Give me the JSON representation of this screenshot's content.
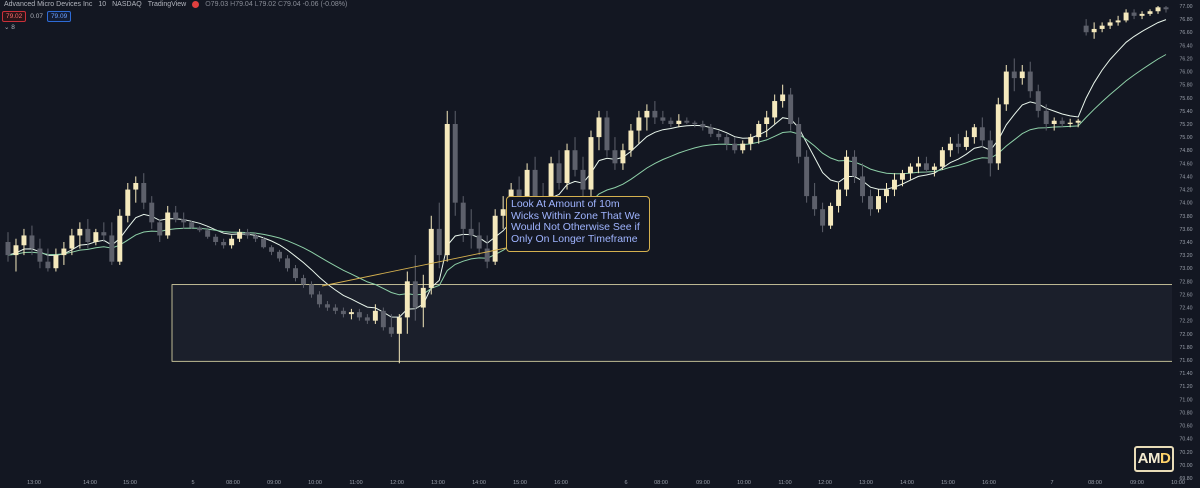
{
  "header": {
    "symbol": "Advanced Micro Devices Inc",
    "interval": "10",
    "exchange": "NASDAQ",
    "source": "TradingView",
    "ohlc": {
      "o": "79.03",
      "h": "79.04",
      "l": "79.02",
      "c": "79.04",
      "change": "-0.06 (-0.08%)"
    }
  },
  "quote": {
    "bid": "79.02",
    "spread": "0.07",
    "ask": "79.09"
  },
  "indicator_toggle": "8",
  "annotation": {
    "text": "Look At Amount of 10m Wicks Within Zone That We Would Not Otherwise See if Only On Longer Timeframe"
  },
  "logo_text": "AMD",
  "colors": {
    "background": "#131722",
    "up_candle": "#f5e9bd",
    "down_candle": "#5d606b",
    "ma_fast": "#e9f6ec",
    "ma_slow": "#8ed0a8",
    "zone_border": "#e8e2b0",
    "annotation_border": "#d4b04f",
    "annotation_text": "#9fb4ff"
  },
  "chart_data": {
    "type": "candlestick",
    "x_tick_labels": [
      "13:00",
      "14:00",
      "15:00",
      "5",
      "08:00",
      "09:00",
      "10:00",
      "11:00",
      "12:00",
      "13:00",
      "14:00",
      "15:00",
      "16:00",
      "6",
      "08:00",
      "09:00",
      "10:00",
      "11:00",
      "12:00",
      "13:00",
      "14:00",
      "15:00",
      "16:00",
      "7",
      "08:00",
      "09:00",
      "10:00"
    ],
    "y_tick_labels": [
      "77.00",
      "76.80",
      "76.60",
      "76.40",
      "76.20",
      "76.00",
      "75.80",
      "75.60",
      "75.40",
      "75.20",
      "75.00",
      "74.80",
      "74.60",
      "74.40",
      "74.20",
      "74.00",
      "73.80",
      "73.60",
      "73.40",
      "73.20",
      "73.00",
      "72.80",
      "72.60",
      "72.40",
      "72.20",
      "72.00",
      "71.80",
      "71.60",
      "71.40",
      "71.20",
      "71.00",
      "70.80",
      "70.60",
      "70.40",
      "70.20",
      "70.00",
      "69.80"
    ],
    "ylim": [
      69.8,
      77.0
    ],
    "zone": {
      "low": 71.58,
      "high": 72.75
    },
    "candles": [
      {
        "o": 73.4,
        "h": 73.55,
        "l": 73.1,
        "c": 73.2
      },
      {
        "o": 73.2,
        "h": 73.45,
        "l": 72.95,
        "c": 73.35
      },
      {
        "o": 73.35,
        "h": 73.6,
        "l": 73.2,
        "c": 73.5
      },
      {
        "o": 73.5,
        "h": 73.65,
        "l": 73.2,
        "c": 73.3
      },
      {
        "o": 73.3,
        "h": 73.45,
        "l": 73.0,
        "c": 73.1
      },
      {
        "o": 73.1,
        "h": 73.3,
        "l": 72.95,
        "c": 73.0
      },
      {
        "o": 73.0,
        "h": 73.3,
        "l": 72.95,
        "c": 73.2
      },
      {
        "o": 73.2,
        "h": 73.4,
        "l": 73.05,
        "c": 73.3
      },
      {
        "o": 73.3,
        "h": 73.6,
        "l": 73.2,
        "c": 73.5
      },
      {
        "o": 73.5,
        "h": 73.7,
        "l": 73.3,
        "c": 73.6
      },
      {
        "o": 73.6,
        "h": 73.75,
        "l": 73.3,
        "c": 73.4
      },
      {
        "o": 73.4,
        "h": 73.6,
        "l": 73.35,
        "c": 73.55
      },
      {
        "o": 73.55,
        "h": 73.7,
        "l": 73.4,
        "c": 73.5
      },
      {
        "o": 73.5,
        "h": 73.7,
        "l": 73.05,
        "c": 73.1
      },
      {
        "o": 73.1,
        "h": 73.9,
        "l": 73.05,
        "c": 73.8
      },
      {
        "o": 73.8,
        "h": 74.3,
        "l": 73.7,
        "c": 74.2
      },
      {
        "o": 74.2,
        "h": 74.4,
        "l": 74.0,
        "c": 74.3
      },
      {
        "o": 74.3,
        "h": 74.45,
        "l": 73.9,
        "c": 74.0
      },
      {
        "o": 74.0,
        "h": 74.1,
        "l": 73.6,
        "c": 73.7
      },
      {
        "o": 73.7,
        "h": 73.75,
        "l": 73.4,
        "c": 73.5
      },
      {
        "o": 73.5,
        "h": 73.95,
        "l": 73.45,
        "c": 73.85
      },
      {
        "o": 73.85,
        "h": 73.95,
        "l": 73.7,
        "c": 73.75
      },
      {
        "o": 73.75,
        "h": 73.85,
        "l": 73.6,
        "c": 73.7
      },
      {
        "o": 73.7,
        "h": 73.72,
        "l": 73.6,
        "c": 73.62
      },
      {
        "o": 73.62,
        "h": 73.64,
        "l": 73.55,
        "c": 73.58
      },
      {
        "o": 73.58,
        "h": 73.62,
        "l": 73.45,
        "c": 73.48
      },
      {
        "o": 73.48,
        "h": 73.52,
        "l": 73.35,
        "c": 73.4
      },
      {
        "o": 73.4,
        "h": 73.45,
        "l": 73.3,
        "c": 73.35
      },
      {
        "o": 73.35,
        "h": 73.5,
        "l": 73.3,
        "c": 73.45
      },
      {
        "o": 73.45,
        "h": 73.6,
        "l": 73.4,
        "c": 73.55
      },
      {
        "o": 73.55,
        "h": 73.6,
        "l": 73.45,
        "c": 73.5
      },
      {
        "o": 73.5,
        "h": 73.55,
        "l": 73.4,
        "c": 73.45
      },
      {
        "o": 73.45,
        "h": 73.48,
        "l": 73.3,
        "c": 73.32
      },
      {
        "o": 73.32,
        "h": 73.35,
        "l": 73.2,
        "c": 73.25
      },
      {
        "o": 73.25,
        "h": 73.28,
        "l": 73.1,
        "c": 73.15
      },
      {
        "o": 73.15,
        "h": 73.2,
        "l": 72.95,
        "c": 73.0
      },
      {
        "o": 73.0,
        "h": 73.05,
        "l": 72.8,
        "c": 72.85
      },
      {
        "o": 72.85,
        "h": 72.9,
        "l": 72.7,
        "c": 72.75
      },
      {
        "o": 72.75,
        "h": 72.8,
        "l": 72.55,
        "c": 72.6
      },
      {
        "o": 72.6,
        "h": 72.65,
        "l": 72.4,
        "c": 72.45
      },
      {
        "o": 72.45,
        "h": 72.5,
        "l": 72.35,
        "c": 72.4
      },
      {
        "o": 72.4,
        "h": 72.45,
        "l": 72.3,
        "c": 72.35
      },
      {
        "o": 72.35,
        "h": 72.4,
        "l": 72.25,
        "c": 72.3
      },
      {
        "o": 72.3,
        "h": 72.38,
        "l": 72.22,
        "c": 72.33
      },
      {
        "o": 72.33,
        "h": 72.38,
        "l": 72.2,
        "c": 72.25
      },
      {
        "o": 72.25,
        "h": 72.3,
        "l": 72.15,
        "c": 72.2
      },
      {
        "o": 72.2,
        "h": 72.45,
        "l": 72.15,
        "c": 72.35
      },
      {
        "o": 72.35,
        "h": 72.4,
        "l": 72.05,
        "c": 72.1
      },
      {
        "o": 72.1,
        "h": 72.3,
        "l": 71.95,
        "c": 72.0
      },
      {
        "o": 72.0,
        "h": 72.3,
        "l": 71.55,
        "c": 72.25
      },
      {
        "o": 72.25,
        "h": 72.95,
        "l": 72.0,
        "c": 72.8
      },
      {
        "o": 72.8,
        "h": 73.2,
        "l": 72.2,
        "c": 72.4
      },
      {
        "o": 72.4,
        "h": 72.9,
        "l": 72.1,
        "c": 72.7
      },
      {
        "o": 72.7,
        "h": 73.8,
        "l": 72.6,
        "c": 73.6
      },
      {
        "o": 73.6,
        "h": 74.0,
        "l": 73.0,
        "c": 73.2
      },
      {
        "o": 73.2,
        "h": 75.4,
        "l": 73.1,
        "c": 75.2
      },
      {
        "o": 75.2,
        "h": 75.4,
        "l": 73.8,
        "c": 74.0
      },
      {
        "o": 74.0,
        "h": 74.1,
        "l": 73.4,
        "c": 73.6
      },
      {
        "o": 73.6,
        "h": 73.9,
        "l": 73.3,
        "c": 73.5
      },
      {
        "o": 73.5,
        "h": 73.7,
        "l": 73.2,
        "c": 73.3
      },
      {
        "o": 73.3,
        "h": 73.5,
        "l": 73.0,
        "c": 73.1
      },
      {
        "o": 73.1,
        "h": 73.9,
        "l": 73.05,
        "c": 73.8
      },
      {
        "o": 73.8,
        "h": 74.1,
        "l": 73.6,
        "c": 73.9
      },
      {
        "o": 73.9,
        "h": 74.3,
        "l": 73.7,
        "c": 74.2
      },
      {
        "o": 74.2,
        "h": 74.4,
        "l": 73.8,
        "c": 73.9
      },
      {
        "o": 73.9,
        "h": 74.6,
        "l": 73.8,
        "c": 74.5
      },
      {
        "o": 74.5,
        "h": 74.7,
        "l": 74.0,
        "c": 74.1
      },
      {
        "o": 74.1,
        "h": 74.3,
        "l": 73.7,
        "c": 73.8
      },
      {
        "o": 73.8,
        "h": 74.7,
        "l": 73.75,
        "c": 74.6
      },
      {
        "o": 74.6,
        "h": 74.8,
        "l": 74.2,
        "c": 74.3
      },
      {
        "o": 74.3,
        "h": 74.9,
        "l": 74.2,
        "c": 74.8
      },
      {
        "o": 74.8,
        "h": 75.0,
        "l": 74.4,
        "c": 74.5
      },
      {
        "o": 74.5,
        "h": 74.7,
        "l": 74.1,
        "c": 74.2
      },
      {
        "o": 74.2,
        "h": 75.1,
        "l": 74.1,
        "c": 75.0
      },
      {
        "o": 75.0,
        "h": 75.4,
        "l": 74.8,
        "c": 75.3
      },
      {
        "o": 75.3,
        "h": 75.4,
        "l": 74.7,
        "c": 74.8
      },
      {
        "o": 74.8,
        "h": 75.0,
        "l": 74.5,
        "c": 74.6
      },
      {
        "o": 74.6,
        "h": 74.9,
        "l": 74.5,
        "c": 74.8
      },
      {
        "o": 74.8,
        "h": 75.2,
        "l": 74.7,
        "c": 75.1
      },
      {
        "o": 75.1,
        "h": 75.4,
        "l": 74.9,
        "c": 75.3
      },
      {
        "o": 75.3,
        "h": 75.5,
        "l": 75.1,
        "c": 75.4
      },
      {
        "o": 75.4,
        "h": 75.55,
        "l": 75.2,
        "c": 75.3
      },
      {
        "o": 75.3,
        "h": 75.4,
        "l": 75.2,
        "c": 75.25
      },
      {
        "o": 75.25,
        "h": 75.3,
        "l": 75.15,
        "c": 75.2
      },
      {
        "o": 75.2,
        "h": 75.35,
        "l": 75.15,
        "c": 75.25
      },
      {
        "o": 75.25,
        "h": 75.3,
        "l": 75.2,
        "c": 75.22
      },
      {
        "o": 75.22,
        "h": 75.25,
        "l": 75.15,
        "c": 75.2
      },
      {
        "o": 75.2,
        "h": 75.25,
        "l": 75.1,
        "c": 75.15
      },
      {
        "o": 75.15,
        "h": 75.2,
        "l": 75.0,
        "c": 75.05
      },
      {
        "o": 75.05,
        "h": 75.1,
        "l": 74.95,
        "c": 75.0
      },
      {
        "o": 75.0,
        "h": 75.05,
        "l": 74.8,
        "c": 74.9
      },
      {
        "o": 74.9,
        "h": 75.0,
        "l": 74.75,
        "c": 74.8
      },
      {
        "o": 74.8,
        "h": 74.95,
        "l": 74.75,
        "c": 74.9
      },
      {
        "o": 74.9,
        "h": 75.05,
        "l": 74.8,
        "c": 75.0
      },
      {
        "o": 75.0,
        "h": 75.25,
        "l": 74.9,
        "c": 75.2
      },
      {
        "o": 75.2,
        "h": 75.4,
        "l": 75.0,
        "c": 75.3
      },
      {
        "o": 75.3,
        "h": 75.65,
        "l": 75.2,
        "c": 75.55
      },
      {
        "o": 75.55,
        "h": 75.8,
        "l": 75.45,
        "c": 75.65
      },
      {
        "o": 75.65,
        "h": 75.75,
        "l": 75.1,
        "c": 75.2
      },
      {
        "o": 75.2,
        "h": 75.3,
        "l": 74.6,
        "c": 74.7
      },
      {
        "o": 74.7,
        "h": 74.8,
        "l": 74.0,
        "c": 74.1
      },
      {
        "o": 74.1,
        "h": 74.3,
        "l": 73.8,
        "c": 73.9
      },
      {
        "o": 73.9,
        "h": 74.0,
        "l": 73.55,
        "c": 73.65
      },
      {
        "o": 73.65,
        "h": 74.0,
        "l": 73.6,
        "c": 73.95
      },
      {
        "o": 73.95,
        "h": 74.3,
        "l": 73.85,
        "c": 74.2
      },
      {
        "o": 74.2,
        "h": 74.8,
        "l": 74.1,
        "c": 74.7
      },
      {
        "o": 74.7,
        "h": 74.8,
        "l": 74.3,
        "c": 74.4
      },
      {
        "o": 74.4,
        "h": 74.6,
        "l": 74.0,
        "c": 74.1
      },
      {
        "o": 74.1,
        "h": 74.2,
        "l": 73.8,
        "c": 73.9
      },
      {
        "o": 73.9,
        "h": 74.2,
        "l": 73.85,
        "c": 74.1
      },
      {
        "o": 74.1,
        "h": 74.3,
        "l": 74.0,
        "c": 74.2
      },
      {
        "o": 74.2,
        "h": 74.45,
        "l": 74.1,
        "c": 74.35
      },
      {
        "o": 74.35,
        "h": 74.5,
        "l": 74.25,
        "c": 74.45
      },
      {
        "o": 74.45,
        "h": 74.6,
        "l": 74.35,
        "c": 74.55
      },
      {
        "o": 74.55,
        "h": 74.7,
        "l": 74.45,
        "c": 74.6
      },
      {
        "o": 74.6,
        "h": 74.7,
        "l": 74.45,
        "c": 74.5
      },
      {
        "o": 74.5,
        "h": 74.6,
        "l": 74.4,
        "c": 74.55
      },
      {
        "o": 74.55,
        "h": 74.85,
        "l": 74.5,
        "c": 74.8
      },
      {
        "o": 74.8,
        "h": 75.0,
        "l": 74.7,
        "c": 74.9
      },
      {
        "o": 74.9,
        "h": 75.05,
        "l": 74.75,
        "c": 74.85
      },
      {
        "o": 74.85,
        "h": 75.1,
        "l": 74.8,
        "c": 75.0
      },
      {
        "o": 75.0,
        "h": 75.2,
        "l": 74.9,
        "c": 75.15
      },
      {
        "o": 75.15,
        "h": 75.3,
        "l": 74.85,
        "c": 74.95
      },
      {
        "o": 74.95,
        "h": 75.1,
        "l": 74.4,
        "c": 74.6
      },
      {
        "o": 74.6,
        "h": 75.6,
        "l": 74.5,
        "c": 75.5
      },
      {
        "o": 75.5,
        "h": 76.1,
        "l": 75.4,
        "c": 76.0
      },
      {
        "o": 76.0,
        "h": 76.2,
        "l": 75.7,
        "c": 75.9
      },
      {
        "o": 75.9,
        "h": 76.1,
        "l": 75.8,
        "c": 76.0
      },
      {
        "o": 76.0,
        "h": 76.15,
        "l": 75.6,
        "c": 75.7
      },
      {
        "o": 75.7,
        "h": 75.8,
        "l": 75.3,
        "c": 75.4
      },
      {
        "o": 75.4,
        "h": 75.5,
        "l": 75.1,
        "c": 75.2
      },
      {
        "o": 75.2,
        "h": 75.3,
        "l": 75.1,
        "c": 75.25
      },
      {
        "o": 75.25,
        "h": 75.3,
        "l": 75.15,
        "c": 75.2
      },
      {
        "o": 75.2,
        "h": 75.28,
        "l": 75.15,
        "c": 75.22
      },
      {
        "o": 75.22,
        "h": 75.28,
        "l": 75.15,
        "c": 75.25
      },
      {
        "o": 76.7,
        "h": 76.8,
        "l": 76.55,
        "c": 76.6
      },
      {
        "o": 76.6,
        "h": 76.75,
        "l": 76.5,
        "c": 76.65
      },
      {
        "o": 76.65,
        "h": 76.75,
        "l": 76.6,
        "c": 76.7
      },
      {
        "o": 76.7,
        "h": 76.8,
        "l": 76.65,
        "c": 76.75
      },
      {
        "o": 76.75,
        "h": 76.85,
        "l": 76.7,
        "c": 76.78
      },
      {
        "o": 76.78,
        "h": 76.95,
        "l": 76.75,
        "c": 76.9
      },
      {
        "o": 76.9,
        "h": 76.95,
        "l": 76.8,
        "c": 76.85
      },
      {
        "o": 76.85,
        "h": 76.92,
        "l": 76.8,
        "c": 76.88
      },
      {
        "o": 76.88,
        "h": 76.95,
        "l": 76.85,
        "c": 76.92
      },
      {
        "o": 76.92,
        "h": 77.0,
        "l": 76.88,
        "c": 76.98
      },
      {
        "o": 76.98,
        "h": 77.0,
        "l": 76.9,
        "c": 76.95
      }
    ],
    "series": [
      {
        "name": "",
        "type": "ema",
        "period": 8,
        "color": "#e9f6ec"
      },
      {
        "name": "",
        "type": "ema",
        "period": 21,
        "color": "#8ed0a8"
      }
    ],
    "grid": false
  }
}
